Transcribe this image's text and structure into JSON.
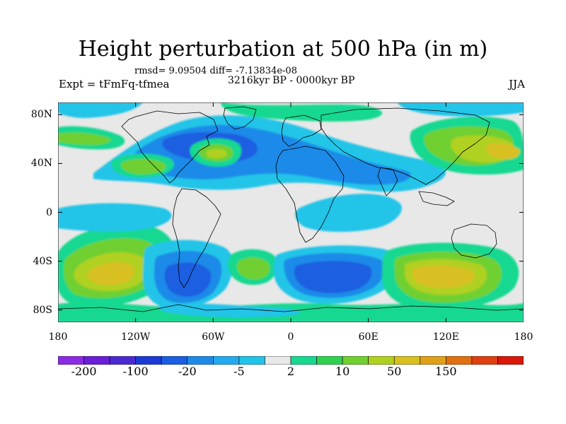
{
  "title": "Height perturbation at 500 hPa (in m)",
  "stats": "rmsd= 9.09504 diff= -7.13834e-08",
  "period": "3216kyr BP - 0000kyr BP",
  "experiment": "Expt = tFmFq-tfmea",
  "season": "JJA",
  "map": {
    "projection": "cylindrical equidistant",
    "lon_range": [
      -180,
      180
    ],
    "lat_range": [
      -90,
      90
    ],
    "y_ticks": [
      {
        "lat": 80,
        "label": "80N"
      },
      {
        "lat": 40,
        "label": "40N"
      },
      {
        "lat": 0,
        "label": "0"
      },
      {
        "lat": -40,
        "label": "40S"
      },
      {
        "lat": -80,
        "label": "80S"
      }
    ],
    "x_ticks": [
      {
        "lon": -180,
        "label": "180"
      },
      {
        "lon": -120,
        "label": "120W"
      },
      {
        "lon": -60,
        "label": "60W"
      },
      {
        "lon": 0,
        "label": "0"
      },
      {
        "lon": 60,
        "label": "60E"
      },
      {
        "lon": 120,
        "label": "120E"
      },
      {
        "lon": 180,
        "label": "180"
      }
    ],
    "background_color": "#e8e8e8"
  },
  "colorbar": {
    "colors": [
      "#8a2be2",
      "#6a1fd6",
      "#4a2ad0",
      "#1c3ad6",
      "#1a5fe0",
      "#1e8ae8",
      "#22aaf0",
      "#20c4e8",
      "#e8e8e8",
      "#18d890",
      "#30d050",
      "#70d030",
      "#b0d020",
      "#d8c020",
      "#e0a018",
      "#e07010",
      "#e04010",
      "#d81808"
    ],
    "labels": [
      {
        "index": 1,
        "text": "-200"
      },
      {
        "index": 3,
        "text": "-100"
      },
      {
        "index": 5,
        "text": "-20"
      },
      {
        "index": 7,
        "text": "-5"
      },
      {
        "index": 9,
        "text": "2"
      },
      {
        "index": 11,
        "text": "10"
      },
      {
        "index": 13,
        "text": "50"
      },
      {
        "index": 15,
        "text": "150"
      }
    ]
  }
}
